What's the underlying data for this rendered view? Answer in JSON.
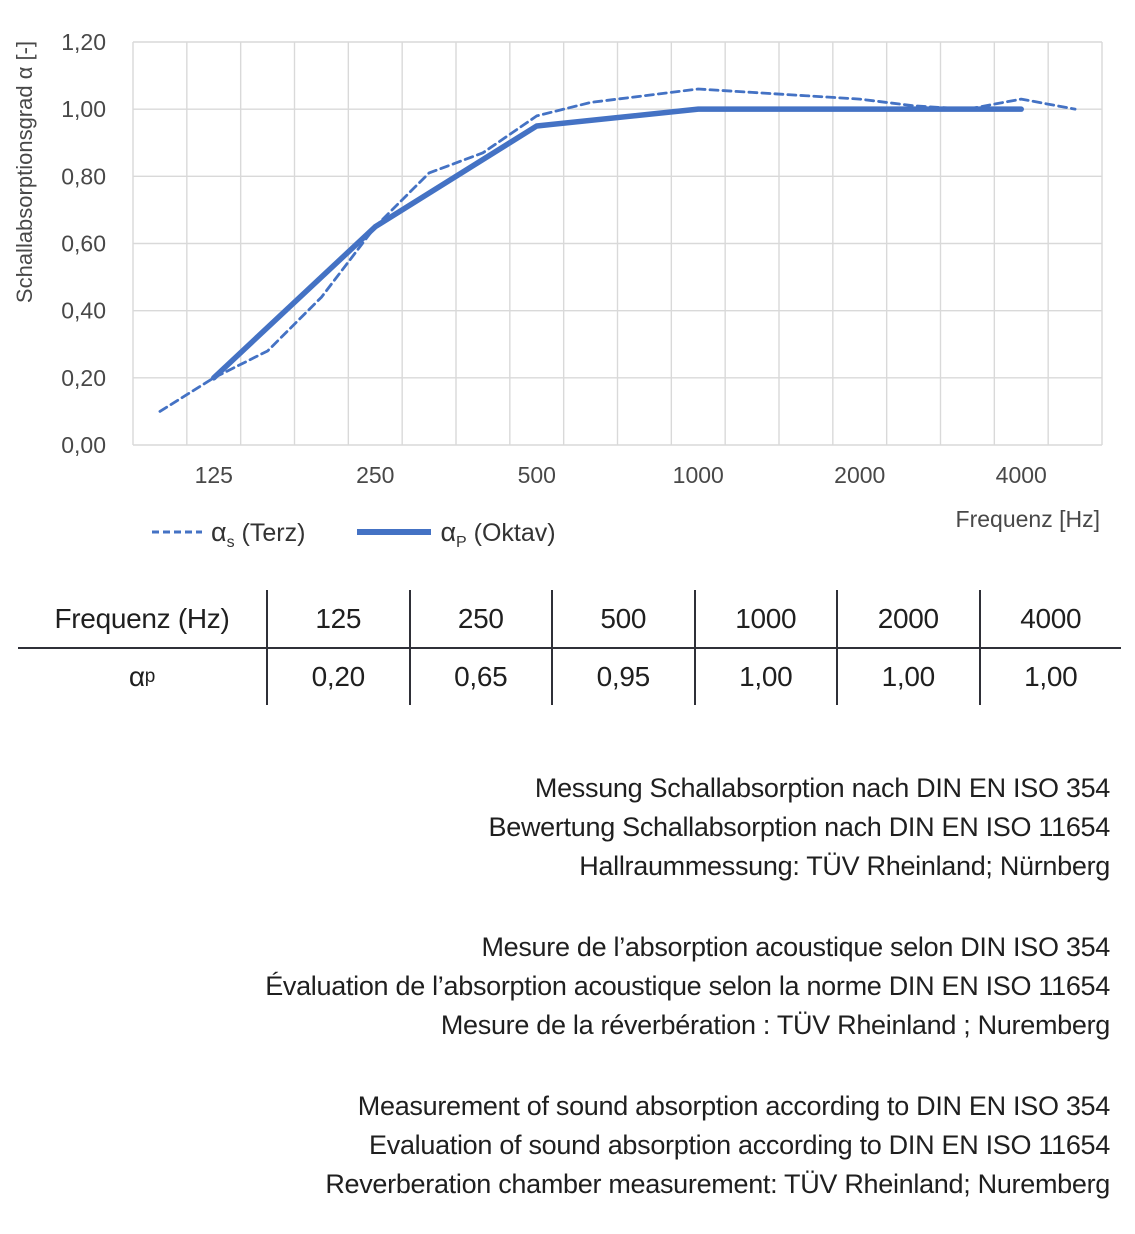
{
  "chart": {
    "y_axis_title": "Schallabsorptionsgrad α [-]",
    "x_axis_title": "Frequenz [Hz]",
    "legend": [
      {
        "alpha": "α",
        "sub": "s",
        "rest": " (Terz)",
        "style": "dashed"
      },
      {
        "alpha": "α",
        "sub": "P",
        "rest": " (Oktav)",
        "style": "solid"
      }
    ]
  },
  "chart_data": {
    "type": "line",
    "title": "",
    "xlabel": "Frequenz [Hz]",
    "ylabel": "Schallabsorptionsgrad α [-]",
    "ylim": [
      0,
      1.2
    ],
    "grid": true,
    "legend_position": "bottom-left",
    "categories": [
      100,
      125,
      160,
      200,
      250,
      315,
      400,
      500,
      630,
      800,
      1000,
      1250,
      1600,
      2000,
      2500,
      3150,
      4000,
      5000
    ],
    "x_tick_labels": [
      "125",
      "250",
      "500",
      "1000",
      "2000",
      "4000"
    ],
    "x_tick_category_index": [
      1,
      4,
      7,
      10,
      13,
      16
    ],
    "y_tick_labels": [
      "0,00",
      "0,20",
      "0,40",
      "0,60",
      "0,80",
      "1,00",
      "1,20"
    ],
    "y_tick_values": [
      0,
      0.2,
      0.4,
      0.6,
      0.8,
      1.0,
      1.2
    ],
    "series": [
      {
        "name": "αs (Terz)",
        "style": "dashed",
        "values": [
          0.1,
          0.2,
          0.28,
          0.44,
          0.65,
          0.81,
          0.87,
          0.98,
          1.02,
          1.04,
          1.06,
          1.05,
          1.04,
          1.03,
          1.01,
          1.0,
          1.03,
          1.0
        ]
      },
      {
        "name": "αP (Oktav)",
        "style": "solid",
        "category_indices": [
          1,
          4,
          7,
          10,
          13,
          16
        ],
        "values": [
          0.2,
          0.65,
          0.95,
          1.0,
          1.0,
          1.0
        ]
      }
    ],
    "colors": {
      "line": "#4472C4",
      "grid": "#D9D9D9",
      "tick_text": "#484848"
    }
  },
  "table": {
    "header": [
      "Frequenz (Hz)",
      "125",
      "250",
      "500",
      "1000",
      "2000",
      "4000"
    ],
    "row_label_alpha": "α",
    "row_label_sub": "p",
    "values": [
      "0,20",
      "0,65",
      "0,95",
      "1,00",
      "1,00",
      "1,00"
    ]
  },
  "notes": {
    "de": [
      "Messung Schallabsorption nach DIN EN ISO 354",
      "Bewertung Schallabsorption nach DIN EN ISO 11654",
      "Hallraummessung: TÜV Rheinland; Nürnberg"
    ],
    "fr": [
      "Mesure de l’absorption acoustique selon DIN ISO 354",
      "Évaluation de l’absorption acoustique selon la norme DIN EN ISO 11654",
      "Mesure de la réverbération : TÜV Rheinland ; Nuremberg"
    ],
    "en": [
      "Measurement of sound absorption according to DIN EN ISO 354",
      "Evaluation of sound absorption according to DIN EN ISO 11654",
      "Reverberation chamber measurement: TÜV Rheinland; Nuremberg"
    ]
  }
}
